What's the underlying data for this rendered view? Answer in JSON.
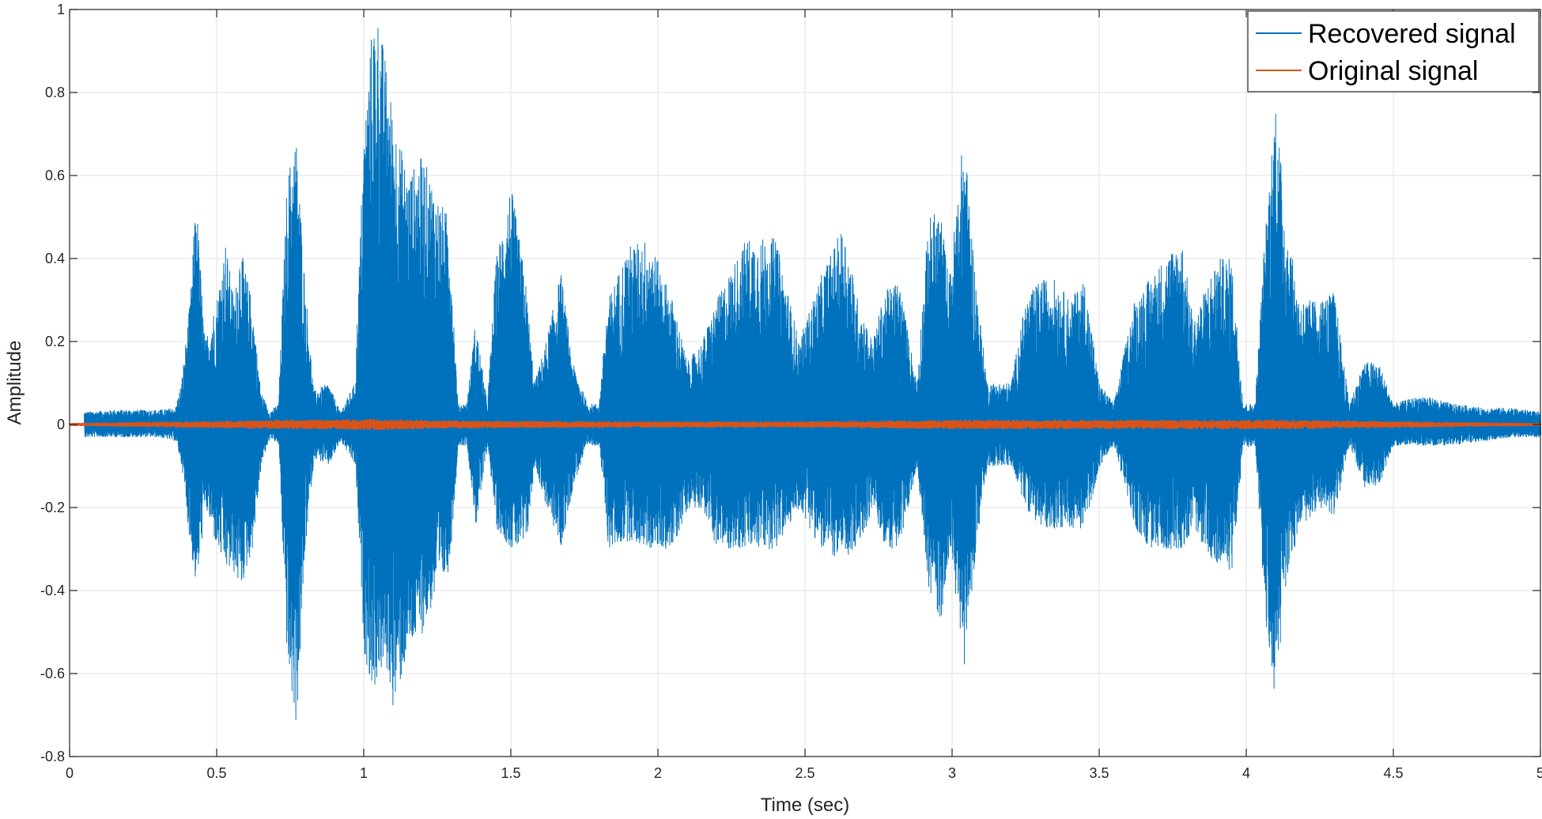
{
  "chart_data": {
    "type": "line",
    "title": "",
    "xlabel": "Time (sec)",
    "ylabel": "Amplitude",
    "xlim": [
      0,
      5
    ],
    "ylim": [
      -0.8,
      1
    ],
    "xticks": [
      0,
      0.5,
      1,
      1.5,
      2,
      2.5,
      3,
      3.5,
      4,
      4.5,
      5
    ],
    "xtick_labels": [
      "0",
      "0.5",
      "1",
      "1.5",
      "2",
      "2.5",
      "3",
      "3.5",
      "4",
      "4.5",
      "5"
    ],
    "yticks": [
      -0.8,
      -0.6,
      -0.4,
      -0.2,
      0,
      0.2,
      0.4,
      0.6,
      0.8,
      1
    ],
    "ytick_labels": [
      "-0.8",
      "-0.6",
      "-0.4",
      "-0.2",
      "0",
      "0.2",
      "0.4",
      "0.6",
      "0.8",
      "1"
    ],
    "grid": true,
    "legend_position": "top-right",
    "series": [
      {
        "name": "Recovered signal",
        "color": "#0072BD",
        "samples": [
          [
            0.05,
            0.03,
            -0.03
          ],
          [
            0.15,
            0.035,
            -0.03
          ],
          [
            0.3,
            0.035,
            -0.03
          ],
          [
            0.36,
            0.04,
            -0.04
          ],
          [
            0.38,
            0.1,
            -0.1
          ],
          [
            0.41,
            0.3,
            -0.3
          ],
          [
            0.43,
            0.56,
            -0.4
          ],
          [
            0.46,
            0.2,
            -0.2
          ],
          [
            0.5,
            0.3,
            -0.3
          ],
          [
            0.53,
            0.44,
            -0.35
          ],
          [
            0.56,
            0.3,
            -0.36
          ],
          [
            0.58,
            0.43,
            -0.4
          ],
          [
            0.62,
            0.3,
            -0.3
          ],
          [
            0.65,
            0.08,
            -0.1
          ],
          [
            0.68,
            0.03,
            -0.03
          ],
          [
            0.71,
            0.05,
            -0.05
          ],
          [
            0.74,
            0.6,
            -0.6
          ],
          [
            0.77,
            0.7,
            -0.73
          ],
          [
            0.8,
            0.35,
            -0.3
          ],
          [
            0.83,
            0.08,
            -0.08
          ],
          [
            0.88,
            0.1,
            -0.1
          ],
          [
            0.92,
            0.03,
            -0.04
          ],
          [
            0.97,
            0.1,
            -0.1
          ],
          [
            1.0,
            0.7,
            -0.55
          ],
          [
            1.03,
            0.98,
            -0.65
          ],
          [
            1.05,
            0.99,
            -0.6
          ],
          [
            1.08,
            0.85,
            -0.6
          ],
          [
            1.1,
            0.75,
            -0.69
          ],
          [
            1.15,
            0.6,
            -0.55
          ],
          [
            1.2,
            0.65,
            -0.5
          ],
          [
            1.25,
            0.55,
            -0.4
          ],
          [
            1.29,
            0.5,
            -0.35
          ],
          [
            1.32,
            0.05,
            -0.05
          ],
          [
            1.35,
            0.05,
            -0.05
          ],
          [
            1.38,
            0.25,
            -0.25
          ],
          [
            1.42,
            0.05,
            -0.05
          ],
          [
            1.45,
            0.4,
            -0.25
          ],
          [
            1.5,
            0.58,
            -0.3
          ],
          [
            1.55,
            0.35,
            -0.3
          ],
          [
            1.58,
            0.1,
            -0.1
          ],
          [
            1.62,
            0.2,
            -0.2
          ],
          [
            1.67,
            0.37,
            -0.3
          ],
          [
            1.71,
            0.15,
            -0.15
          ],
          [
            1.76,
            0.05,
            -0.05
          ],
          [
            1.8,
            0.05,
            -0.05
          ],
          [
            1.83,
            0.3,
            -0.3
          ],
          [
            1.9,
            0.43,
            -0.28
          ],
          [
            1.97,
            0.45,
            -0.3
          ],
          [
            2.05,
            0.3,
            -0.3
          ],
          [
            2.1,
            0.15,
            -0.2
          ],
          [
            2.15,
            0.2,
            -0.2
          ],
          [
            2.2,
            0.3,
            -0.3
          ],
          [
            2.3,
            0.45,
            -0.3
          ],
          [
            2.4,
            0.45,
            -0.3
          ],
          [
            2.48,
            0.2,
            -0.2
          ],
          [
            2.55,
            0.35,
            -0.3
          ],
          [
            2.63,
            0.48,
            -0.33
          ],
          [
            2.68,
            0.3,
            -0.3
          ],
          [
            2.73,
            0.2,
            -0.2
          ],
          [
            2.77,
            0.32,
            -0.3
          ],
          [
            2.82,
            0.35,
            -0.3
          ],
          [
            2.88,
            0.1,
            -0.1
          ],
          [
            2.92,
            0.5,
            -0.4
          ],
          [
            2.96,
            0.52,
            -0.48
          ],
          [
            2.99,
            0.35,
            -0.3
          ],
          [
            3.04,
            0.71,
            -0.58
          ],
          [
            3.08,
            0.35,
            -0.3
          ],
          [
            3.12,
            0.1,
            -0.1
          ],
          [
            3.2,
            0.1,
            -0.1
          ],
          [
            3.25,
            0.3,
            -0.2
          ],
          [
            3.3,
            0.35,
            -0.25
          ],
          [
            3.35,
            0.35,
            -0.25
          ],
          [
            3.4,
            0.3,
            -0.25
          ],
          [
            3.45,
            0.35,
            -0.25
          ],
          [
            3.5,
            0.1,
            -0.1
          ],
          [
            3.55,
            0.05,
            -0.05
          ],
          [
            3.62,
            0.3,
            -0.25
          ],
          [
            3.67,
            0.35,
            -0.3
          ],
          [
            3.72,
            0.4,
            -0.3
          ],
          [
            3.78,
            0.45,
            -0.3
          ],
          [
            3.82,
            0.25,
            -0.25
          ],
          [
            3.9,
            0.4,
            -0.35
          ],
          [
            3.95,
            0.4,
            -0.35
          ],
          [
            3.99,
            0.05,
            -0.05
          ],
          [
            4.03,
            0.05,
            -0.06
          ],
          [
            4.06,
            0.42,
            -0.45
          ],
          [
            4.1,
            0.8,
            -0.68
          ],
          [
            4.13,
            0.52,
            -0.4
          ],
          [
            4.18,
            0.3,
            -0.25
          ],
          [
            4.25,
            0.3,
            -0.2
          ],
          [
            4.3,
            0.32,
            -0.22
          ],
          [
            4.35,
            0.05,
            -0.05
          ],
          [
            4.4,
            0.15,
            -0.15
          ],
          [
            4.45,
            0.15,
            -0.15
          ],
          [
            4.5,
            0.05,
            -0.05
          ],
          [
            4.6,
            0.07,
            -0.05
          ],
          [
            4.7,
            0.05,
            -0.05
          ],
          [
            4.8,
            0.04,
            -0.04
          ],
          [
            4.9,
            0.04,
            -0.03
          ],
          [
            5.0,
            0.03,
            -0.03
          ]
        ]
      },
      {
        "name": "Original signal",
        "color": "#D95319",
        "samples": [
          [
            0.0,
            0.002,
            -0.002
          ],
          [
            0.75,
            0.01,
            -0.01
          ],
          [
            1.05,
            0.012,
            -0.012
          ],
          [
            1.3,
            0.008,
            -0.008
          ],
          [
            2.0,
            0.006,
            -0.006
          ],
          [
            2.5,
            0.006,
            -0.006
          ],
          [
            3.04,
            0.01,
            -0.01
          ],
          [
            4.1,
            0.01,
            -0.01
          ],
          [
            5.0,
            0.002,
            -0.002
          ]
        ]
      }
    ]
  }
}
